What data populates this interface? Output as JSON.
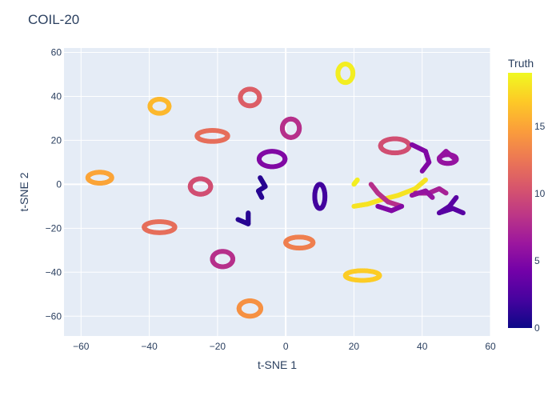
{
  "chart_data": {
    "type": "scatter",
    "title": "COIL-20",
    "xlabel": "t-SNE 1",
    "ylabel": "t-SNE 2",
    "xlim": [
      -65,
      60
    ],
    "ylim": [
      -69,
      62
    ],
    "xticks": [
      -60,
      -40,
      -20,
      0,
      20,
      40,
      60
    ],
    "yticks": [
      -60,
      -40,
      -20,
      0,
      20,
      40,
      60
    ],
    "grid": true,
    "colorbar": {
      "title": "Truth",
      "range": [
        0,
        19
      ],
      "ticks": [
        0,
        5,
        10,
        15
      ],
      "colorscale": [
        "#0d0887",
        "#46039f",
        "#7201a8",
        "#9c179e",
        "#bd3786",
        "#d8576b",
        "#ed7953",
        "#fb9f3a",
        "#fdca26",
        "#f0f921"
      ],
      "position": "right"
    },
    "clusters": [
      {
        "shape": "ring",
        "cx": 17.5,
        "cy": 50.5,
        "rx": 2.2,
        "ry": 4.2,
        "truth": 18.5
      },
      {
        "shape": "ring",
        "cx": -37,
        "cy": 35.5,
        "rx": 2.8,
        "ry": 3.2,
        "truth": 16
      },
      {
        "shape": "ring",
        "cx": -10.5,
        "cy": 39.5,
        "rx": 2.8,
        "ry": 3.8,
        "truth": 11
      },
      {
        "shape": "ring",
        "cx": 1.5,
        "cy": 25.5,
        "rx": 2.5,
        "ry": 4.2,
        "truth": 8
      },
      {
        "shape": "ring",
        "cx": -21.5,
        "cy": 22,
        "rx": 4.5,
        "ry": 2.5,
        "truth": 12
      },
      {
        "shape": "ring",
        "cx": -4,
        "cy": 11.5,
        "rx": 3.8,
        "ry": 3.5,
        "truth": 5
      },
      {
        "shape": "ring",
        "cx": -54.5,
        "cy": 3,
        "rx": 3.5,
        "ry": 2.5,
        "truth": 15
      },
      {
        "shape": "ring",
        "cx": -25,
        "cy": -1,
        "rx": 3,
        "ry": 3.5,
        "truth": 10
      },
      {
        "shape": "ring",
        "cx": 32,
        "cy": 17.5,
        "rx": 4.2,
        "ry": 3.2,
        "truth": 10
      },
      {
        "shape": "ring",
        "cx": 10,
        "cy": -5.5,
        "rx": 1.5,
        "ry": 5.5,
        "truth": 2
      },
      {
        "shape": "ring",
        "cx": -37,
        "cy": -19.5,
        "rx": 4.5,
        "ry": 2.5,
        "truth": 12
      },
      {
        "shape": "ring",
        "cx": 4,
        "cy": -26.5,
        "rx": 4,
        "ry": 2.5,
        "truth": 13
      },
      {
        "shape": "ring",
        "cx": -18.5,
        "cy": -34,
        "rx": 3,
        "ry": 3.5,
        "truth": 8
      },
      {
        "shape": "ring",
        "cx": 22.5,
        "cy": -41.5,
        "rx": 5,
        "ry": 2.2,
        "truth": 17
      },
      {
        "shape": "ring",
        "cx": -10.5,
        "cy": -56.5,
        "rx": 3.2,
        "ry": 3.5,
        "truth": 14
      },
      {
        "shape": "ring",
        "cx": 47.5,
        "cy": 11.5,
        "rx": 2.5,
        "ry": 2,
        "truth": 6
      },
      {
        "shape": "path",
        "points": [
          [
            -7.5,
            3
          ],
          [
            -6,
            -1
          ],
          [
            -8,
            -3
          ],
          [
            -7,
            -6
          ]
        ],
        "truth": 1
      },
      {
        "shape": "path",
        "points": [
          [
            -14,
            -16
          ],
          [
            -11,
            -18
          ],
          [
            -11,
            -13
          ]
        ],
        "truth": 1
      },
      {
        "shape": "path",
        "points": [
          [
            37,
            18
          ],
          [
            41,
            15
          ],
          [
            42,
            10
          ],
          [
            40,
            6
          ]
        ],
        "truth": 5
      },
      {
        "shape": "path",
        "points": [
          [
            45,
            12
          ],
          [
            47,
            15
          ],
          [
            50,
            11
          ]
        ],
        "truth": 6
      },
      {
        "shape": "path",
        "points": [
          [
            41,
            2
          ],
          [
            38,
            -2
          ],
          [
            33,
            -5
          ],
          [
            28,
            -7
          ],
          [
            24,
            -9
          ],
          [
            20,
            -10
          ]
        ],
        "truth": 18
      },
      {
        "shape": "path",
        "points": [
          [
            25,
            0
          ],
          [
            27,
            -4
          ],
          [
            30,
            -8
          ],
          [
            34,
            -10
          ]
        ],
        "truth": 8
      },
      {
        "shape": "path",
        "points": [
          [
            20,
            0
          ],
          [
            21,
            2
          ]
        ],
        "truth": 18.5
      },
      {
        "shape": "path",
        "points": [
          [
            38,
            -4
          ],
          [
            42,
            -4
          ],
          [
            45,
            -2
          ],
          [
            47,
            -4
          ]
        ],
        "truth": 7
      },
      {
        "shape": "path",
        "points": [
          [
            50,
            -6
          ],
          [
            48,
            -10
          ],
          [
            45,
            -13
          ],
          [
            49,
            -11
          ],
          [
            52,
            -13
          ]
        ],
        "truth": 3
      },
      {
        "shape": "path",
        "points": [
          [
            27,
            -10
          ],
          [
            31,
            -12
          ],
          [
            34,
            -10
          ]
        ],
        "truth": 5
      },
      {
        "shape": "path",
        "points": [
          [
            37,
            -5
          ],
          [
            41,
            -3
          ],
          [
            43,
            -6
          ]
        ],
        "truth": 6
      }
    ]
  }
}
